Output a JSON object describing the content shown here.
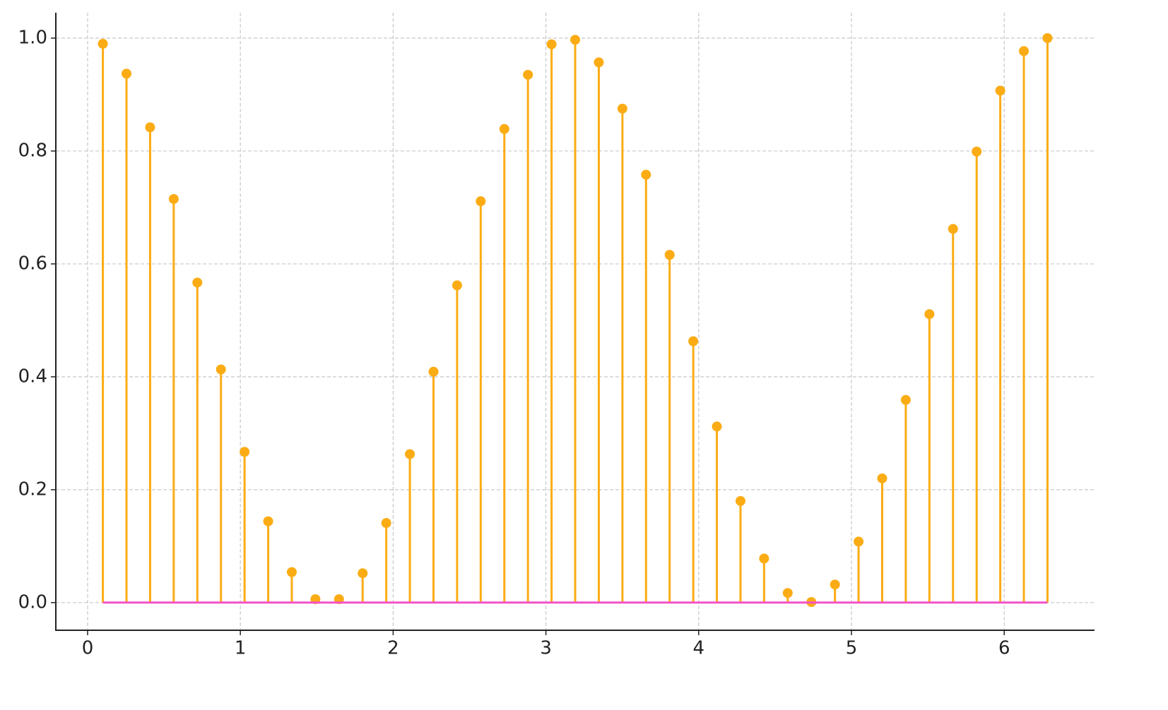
{
  "chart_data": {
    "type": "stem",
    "x": [
      0.1,
      0.2546,
      0.4092,
      0.5637,
      0.7183,
      0.8729,
      1.0275,
      1.1821,
      1.3366,
      1.4912,
      1.6458,
      1.8004,
      1.955,
      2.1095,
      2.2641,
      2.4187,
      2.5733,
      2.7279,
      2.8824,
      3.037,
      3.1916,
      3.3462,
      3.5008,
      3.6553,
      3.8099,
      3.9645,
      4.1191,
      4.2737,
      4.4282,
      4.5828,
      4.7374,
      4.892,
      5.0466,
      5.2011,
      5.3557,
      5.5103,
      5.6649,
      5.8195,
      5.974,
      6.1286,
      6.2832
    ],
    "values": [
      0.99,
      0.937,
      0.842,
      0.715,
      0.567,
      0.413,
      0.267,
      0.144,
      0.054,
      0.006,
      0.006,
      0.052,
      0.141,
      0.263,
      0.409,
      0.562,
      0.711,
      0.839,
      0.935,
      0.989,
      0.997,
      0.957,
      0.875,
      0.758,
      0.616,
      0.463,
      0.312,
      0.18,
      0.078,
      0.017,
      0.001,
      0.032,
      0.108,
      0.22,
      0.359,
      0.511,
      0.662,
      0.799,
      0.907,
      0.977,
      1.0
    ],
    "color": "#fbac14",
    "baseline_color": "#f452c6",
    "xlim": [
      -0.208,
      6.591
    ],
    "ylim": [
      -0.049,
      1.045
    ],
    "xticks": [
      0,
      1,
      2,
      3,
      4,
      5,
      6
    ],
    "yticks": [
      {
        "value": 0,
        "label": "0.0"
      },
      {
        "value": 0.2,
        "label": "0.2"
      },
      {
        "value": 0.4,
        "label": "0.4"
      },
      {
        "value": 0.6,
        "label": "0.6"
      },
      {
        "value": 0.8,
        "label": "0.8"
      },
      {
        "value": 1,
        "label": "1.0"
      }
    ],
    "grid": true
  }
}
